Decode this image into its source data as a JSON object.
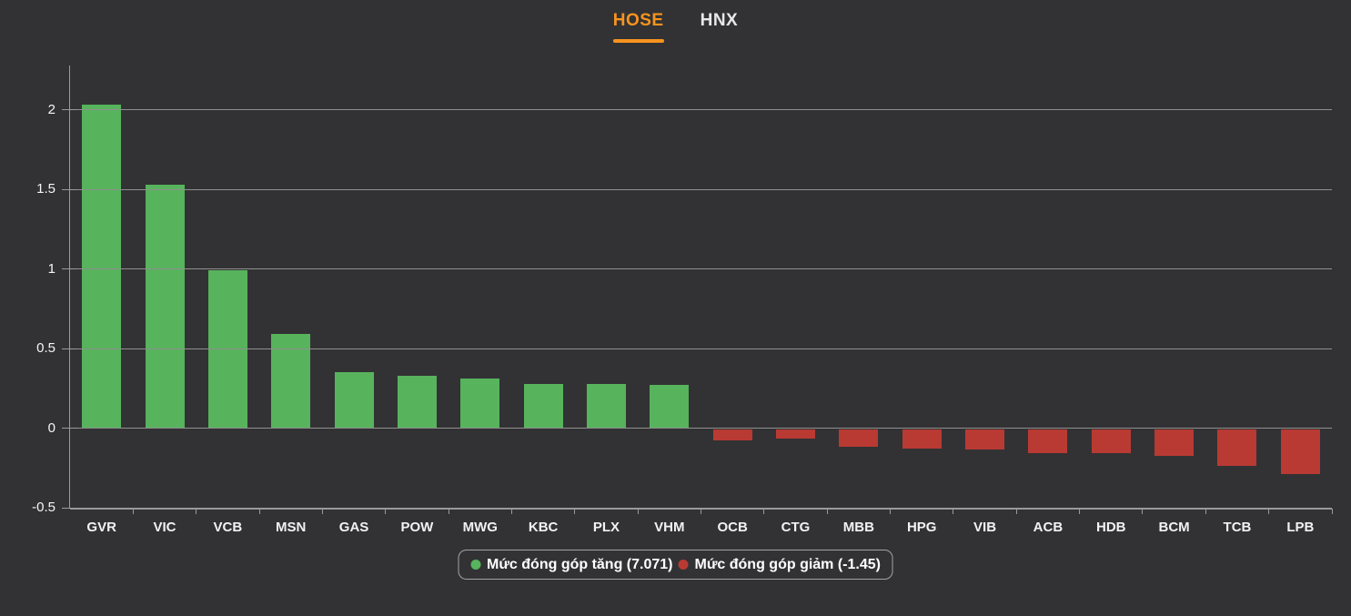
{
  "tabs": [
    {
      "label": "HOSE",
      "active": true
    },
    {
      "label": "HNX",
      "active": false
    }
  ],
  "colors": {
    "background": "#323234",
    "accent_orange": "#f7941e",
    "positive_green": "#57b35c",
    "negative_red": "#b93a33",
    "grid": "#8f8f8f",
    "axis": "#9a9a9a"
  },
  "chart_data": {
    "type": "bar",
    "categories": [
      "GVR",
      "VIC",
      "VCB",
      "MSN",
      "GAS",
      "POW",
      "MWG",
      "KBC",
      "PLX",
      "VHM",
      "OCB",
      "CTG",
      "MBB",
      "HPG",
      "VIB",
      "ACB",
      "HDB",
      "BCM",
      "TCB",
      "LPB"
    ],
    "values": [
      2.03,
      1.53,
      0.99,
      0.59,
      0.35,
      0.33,
      0.31,
      0.28,
      0.28,
      0.27,
      -0.07,
      -0.06,
      -0.11,
      -0.12,
      -0.13,
      -0.15,
      -0.15,
      -0.17,
      -0.23,
      -0.28
    ],
    "title": "",
    "xlabel": "",
    "ylabel": "",
    "ylim": [
      -0.5,
      2.28
    ],
    "yticks": [
      2,
      1.5,
      1,
      0.5,
      0,
      -0.5
    ],
    "grid": true,
    "positive_color": "#57b35c",
    "negative_color": "#b93a33",
    "legend_position": "bottom",
    "legend": [
      {
        "label": "Mức đóng góp tăng (7.071)",
        "color": "#57b35c"
      },
      {
        "label": "Mức đóng góp giảm (-1.45)",
        "color": "#b93a33"
      }
    ]
  }
}
